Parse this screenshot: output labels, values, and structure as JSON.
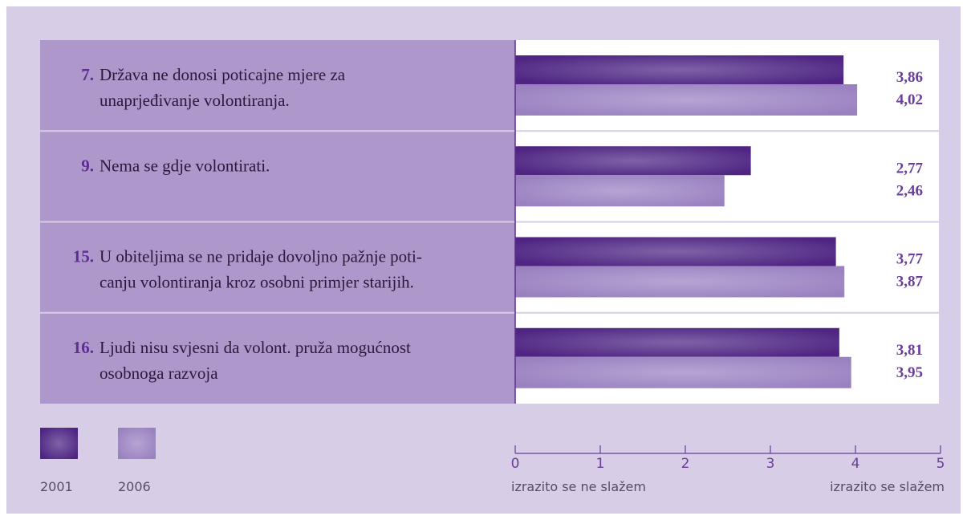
{
  "chart_data": {
    "type": "hbar",
    "category_numbers": [
      "7.",
      "9.",
      "15.",
      "16."
    ],
    "categories": [
      [
        "Država ne donosi poticajne mjere za",
        "unaprjeđivanje volontiranja."
      ],
      [
        "Nema se gdje volontirati."
      ],
      [
        "U obiteljima se ne pridaje dovoljno pažnje poti-",
        "canju  volontiranja kroz osobni primjer starijih."
      ],
      [
        "Ljudi nisu svjesni da volont. pruža mogućnost",
        "osobnoga razvoja"
      ]
    ],
    "series": [
      {
        "name": "2001",
        "color": "#4f2483",
        "values": [
          3.86,
          2.77,
          3.77,
          3.81
        ],
        "value_labels": [
          "3,86",
          "2,77",
          "3,77",
          "3,81"
        ]
      },
      {
        "name": "2006",
        "color": "#9a82c1",
        "values": [
          4.02,
          2.46,
          3.87,
          3.95
        ],
        "value_labels": [
          "4,02",
          "2,46",
          "3,87",
          "3,95"
        ]
      }
    ],
    "xlim": [
      0,
      5
    ],
    "xticks": [
      0,
      1,
      2,
      3,
      4,
      5
    ],
    "xlabel_left": "izrazito se ne slažem",
    "xlabel_right": "izrazito se slažem"
  }
}
